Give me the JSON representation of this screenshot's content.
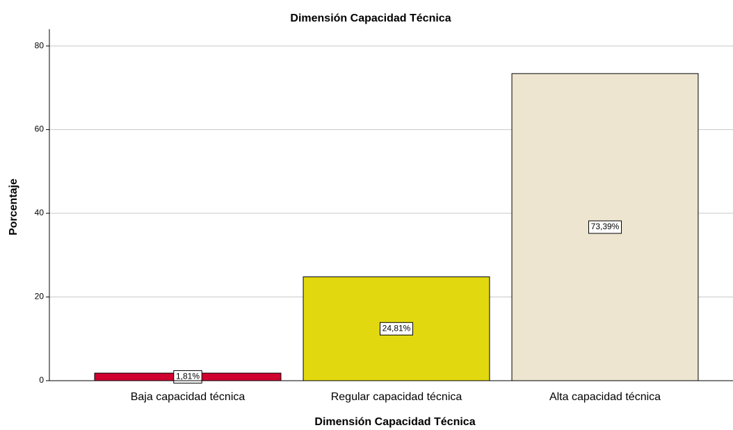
{
  "chart_data": {
    "type": "bar",
    "title": "Dimensión Capacidad Técnica",
    "x_label": "Dimensión Capacidad Técnica",
    "y_label": "Porcentaje",
    "categories": [
      "Baja capacidad técnica",
      "Regular capacidad técnica",
      "Alta capacidad técnica"
    ],
    "values": [
      1.81,
      24.81,
      73.39
    ],
    "value_labels": [
      "1,81%",
      "24,81%",
      "73,39%"
    ],
    "colors": [
      "#d0022f",
      "#e2d80f",
      "#ede5cf"
    ],
    "ylim": [
      0,
      84
    ],
    "yticks": [
      0,
      20,
      40,
      60,
      80
    ],
    "grid": true
  }
}
